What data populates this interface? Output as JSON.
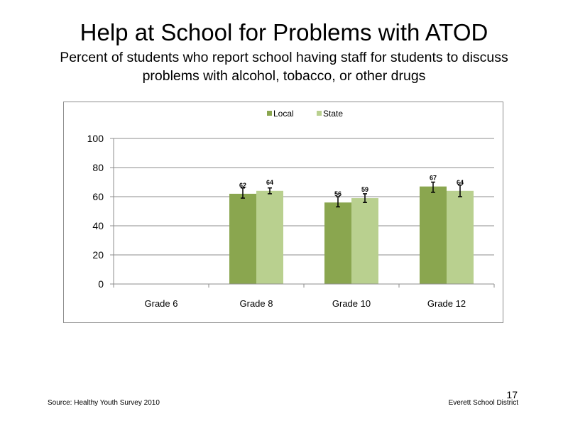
{
  "title": "Help at School for Problems with ATOD",
  "subtitle": "Percent of students who report school having staff for students to discuss problems with alcohol, tobacco, or other drugs",
  "footer": {
    "source": "Source: Healthy Youth Survey 2010",
    "district": "Everett School District",
    "page_number": "17"
  },
  "chart_data": {
    "type": "bar",
    "categories": [
      "Grade 6",
      "Grade 8",
      "Grade 10",
      "Grade 12"
    ],
    "series": [
      {
        "name": "Local",
        "color": "#8aa64f",
        "values": [
          null,
          62,
          56,
          67
        ],
        "error_low": [
          null,
          59,
          53,
          63
        ],
        "error_high": [
          null,
          66,
          60,
          70
        ]
      },
      {
        "name": "State",
        "color": "#b9d08f",
        "values": [
          null,
          64,
          59,
          64
        ],
        "error_low": [
          null,
          62,
          56,
          60
        ],
        "error_high": [
          null,
          66,
          62,
          68
        ]
      }
    ],
    "yticks": [
      "0",
      "20",
      "40",
      "60",
      "80",
      "100"
    ],
    "ylim": [
      0,
      100
    ],
    "grid": true,
    "legend": "top-center"
  }
}
